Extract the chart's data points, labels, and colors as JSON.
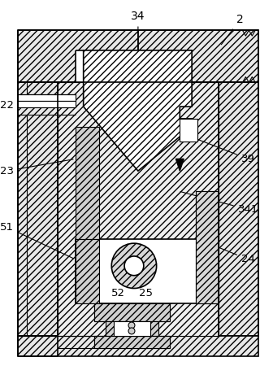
{
  "bg_color": "#ffffff",
  "figsize": [
    3.36,
    4.5
  ],
  "dpi": 100,
  "hatch_pattern": "////",
  "line_color": "#000000",
  "hatch_fc": "#e8e8e8"
}
